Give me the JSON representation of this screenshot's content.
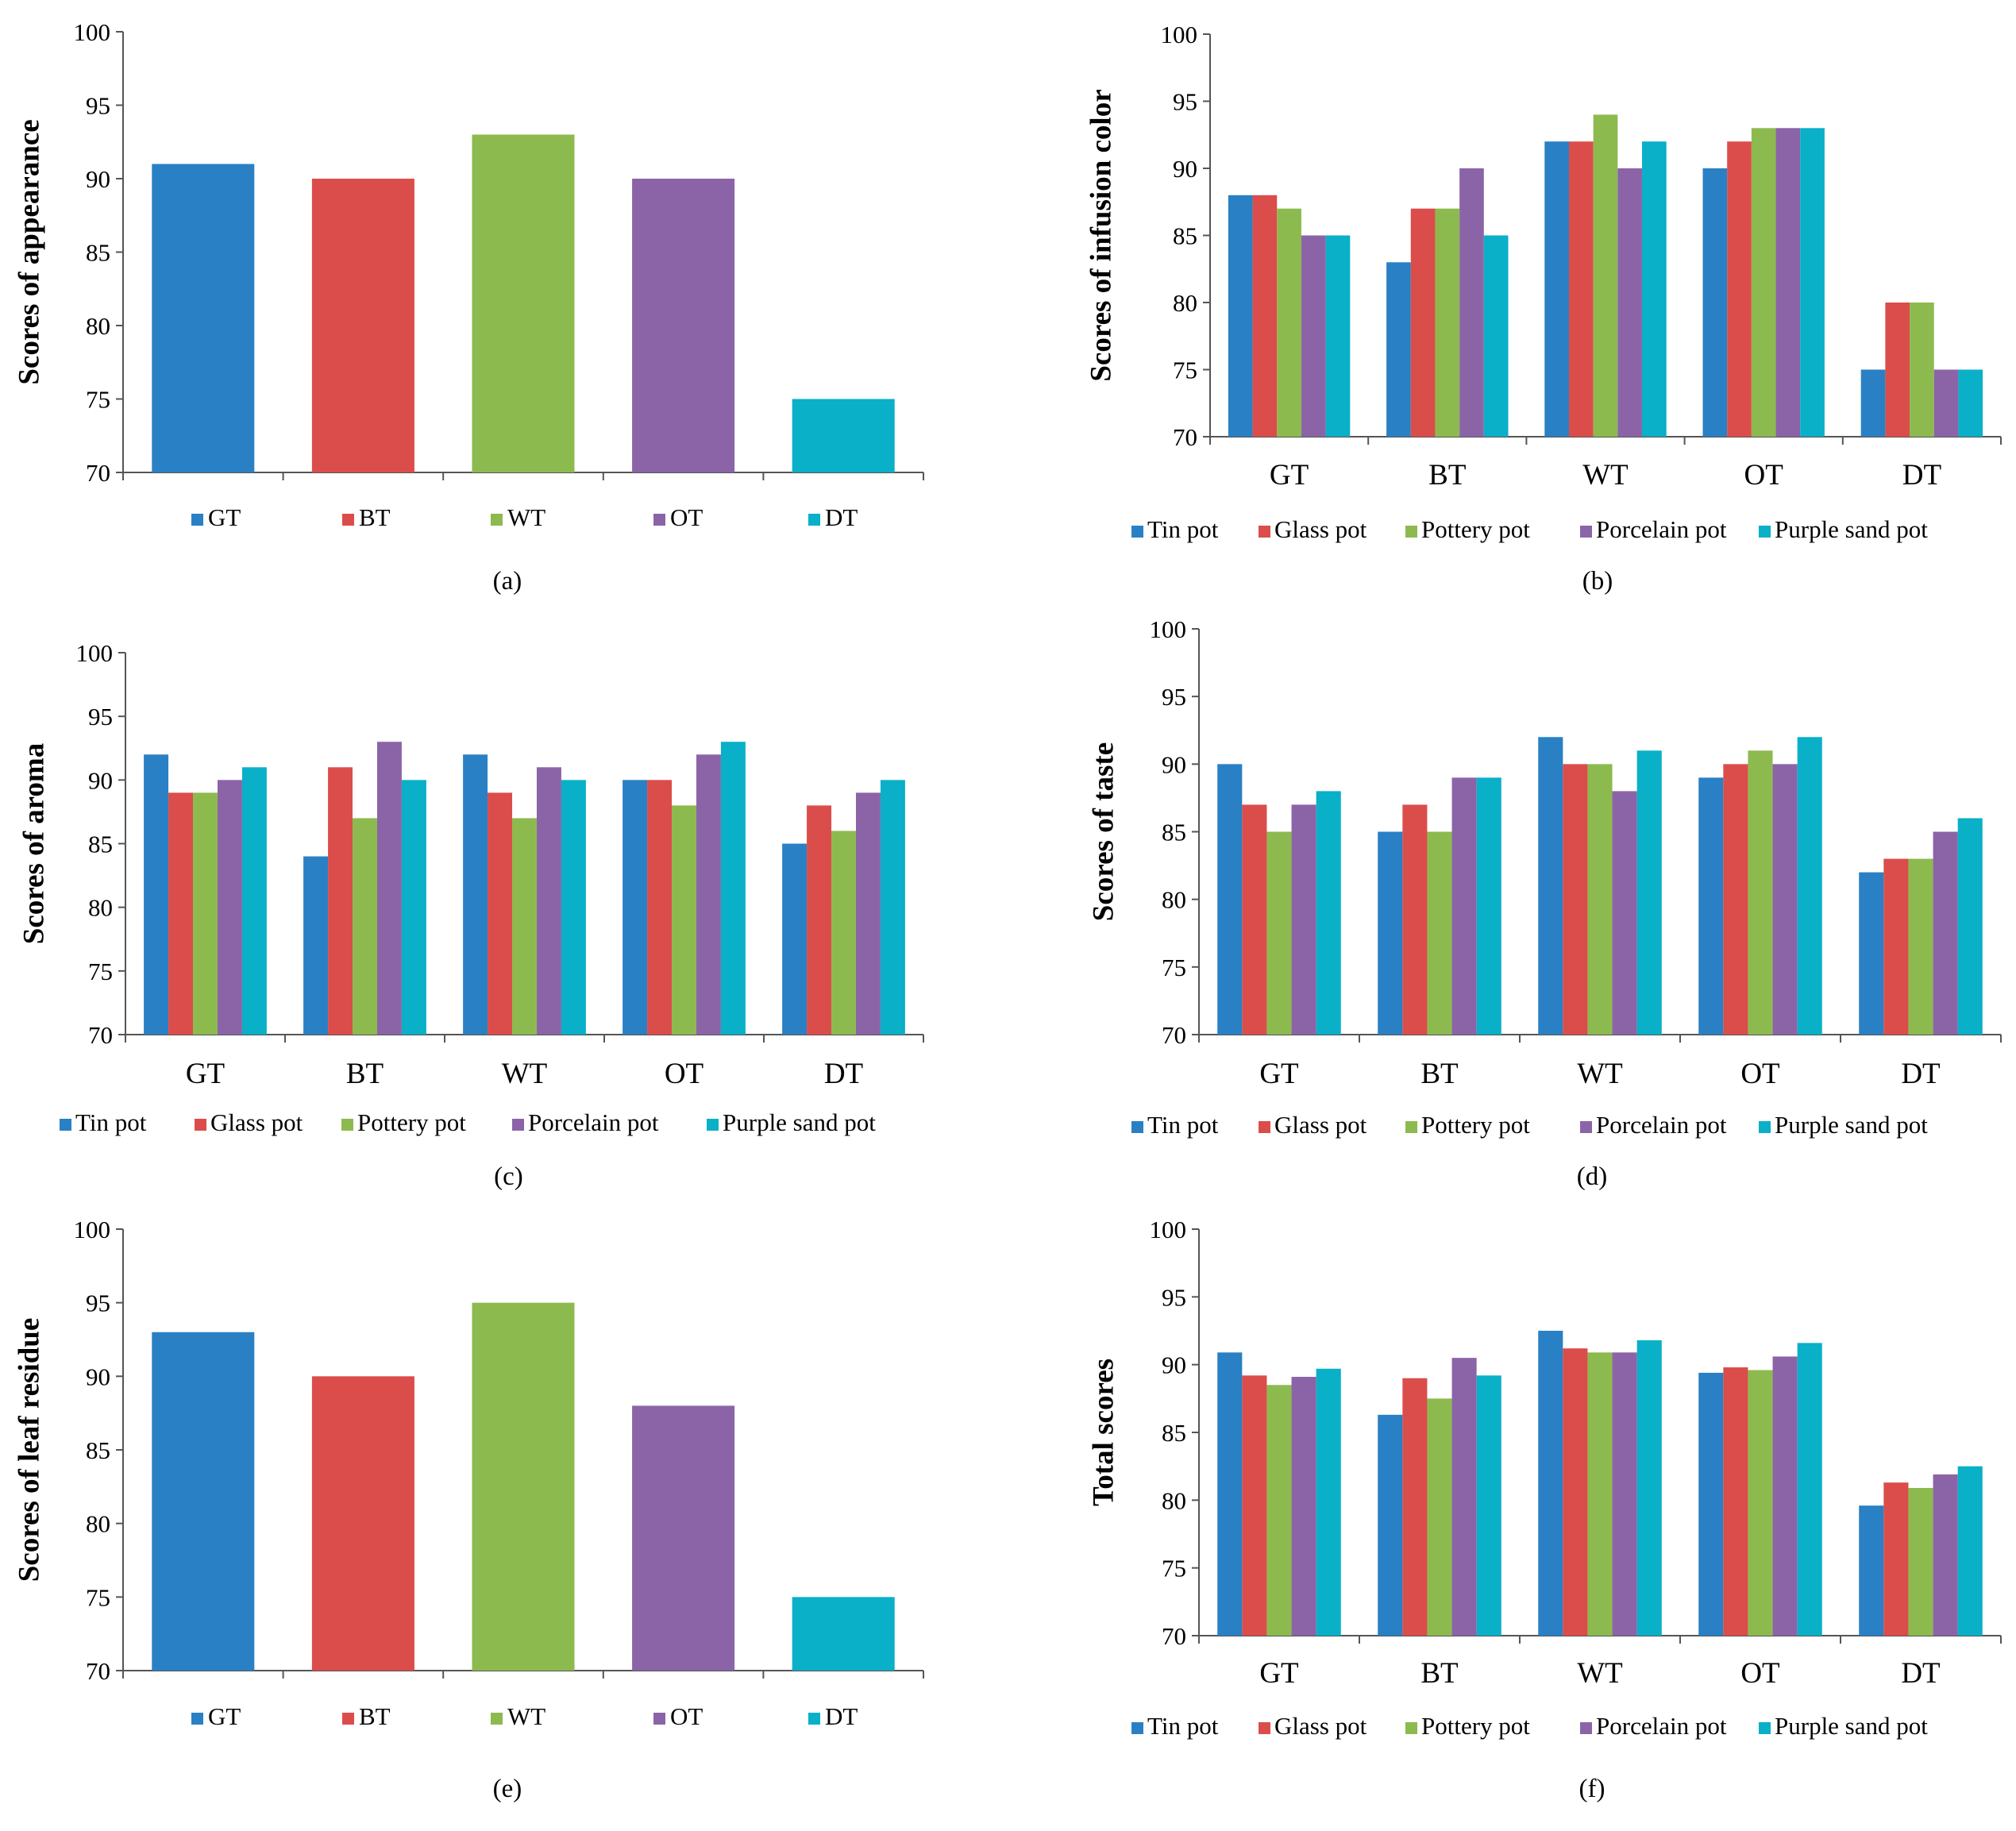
{
  "colors": {
    "GT": "#2A80C4",
    "BT": "#DB4D4B",
    "WT": "#8DBA4E",
    "OT": "#8B64A8",
    "DT": "#0AAFC8",
    "Tin pot": "#2A80C4",
    "Glass pot": "#DB4D4B",
    "Pottery pot": "#8DBA4E",
    "Porcelain pot": "#8B64A8",
    "Purple sand pot": "#0AAFC8",
    "axis": "#555555"
  },
  "chart_data": [
    {
      "id": "a",
      "type": "bar",
      "caption": "(a)",
      "ylabel": "Scores of appearance",
      "ylim": [
        70,
        100
      ],
      "yticks": [
        70,
        75,
        80,
        85,
        90,
        95,
        100
      ],
      "categories": [
        "GT",
        "BT",
        "WT",
        "OT",
        "DT"
      ],
      "values": [
        91,
        90,
        93,
        90,
        75
      ],
      "show_category_axis_labels": false,
      "legend": [
        "GT",
        "BT",
        "WT",
        "OT",
        "DT"
      ],
      "legend_position": "bottom"
    },
    {
      "id": "b",
      "type": "bar",
      "caption": "(b)",
      "ylabel": "Scores of infusion color",
      "ylim": [
        70,
        100
      ],
      "yticks": [
        70,
        75,
        80,
        85,
        90,
        95,
        100
      ],
      "categories": [
        "GT",
        "BT",
        "WT",
        "OT",
        "DT"
      ],
      "series": [
        {
          "name": "Tin pot",
          "values": [
            88,
            83,
            92,
            90,
            75
          ]
        },
        {
          "name": "Glass pot",
          "values": [
            88,
            87,
            92,
            92,
            80
          ]
        },
        {
          "name": "Pottery pot",
          "values": [
            87,
            87,
            94,
            93,
            80
          ]
        },
        {
          "name": "Porcelain pot",
          "values": [
            85,
            90,
            90,
            93,
            75
          ]
        },
        {
          "name": "Purple sand pot",
          "values": [
            85,
            85,
            92,
            93,
            75
          ]
        }
      ],
      "show_category_axis_labels": true,
      "legend_position": "bottom"
    },
    {
      "id": "c",
      "type": "bar",
      "caption": "(c)",
      "ylabel": "Scores of aroma",
      "ylim": [
        70,
        100
      ],
      "yticks": [
        70,
        75,
        80,
        85,
        90,
        95,
        100
      ],
      "categories": [
        "GT",
        "BT",
        "WT",
        "OT",
        "DT"
      ],
      "series": [
        {
          "name": "Tin pot",
          "values": [
            92,
            84,
            92,
            90,
            85
          ]
        },
        {
          "name": "Glass pot",
          "values": [
            89,
            91,
            89,
            90,
            88
          ]
        },
        {
          "name": "Pottery pot",
          "values": [
            89,
            87,
            87,
            88,
            86
          ]
        },
        {
          "name": "Porcelain pot",
          "values": [
            90,
            93,
            91,
            92,
            89
          ]
        },
        {
          "name": "Purple sand pot",
          "values": [
            91,
            90,
            90,
            93,
            90
          ]
        }
      ],
      "show_category_axis_labels": true,
      "legend_position": "bottom"
    },
    {
      "id": "d",
      "type": "bar",
      "caption": "(d)",
      "ylabel": "Scores of taste",
      "ylim": [
        70,
        100
      ],
      "yticks": [
        70,
        75,
        80,
        85,
        90,
        95,
        100
      ],
      "categories": [
        "GT",
        "BT",
        "WT",
        "OT",
        "DT"
      ],
      "series": [
        {
          "name": "Tin pot",
          "values": [
            90,
            85,
            92,
            89,
            82
          ]
        },
        {
          "name": "Glass pot",
          "values": [
            87,
            87,
            90,
            90,
            83
          ]
        },
        {
          "name": "Pottery pot",
          "values": [
            85,
            85,
            90,
            91,
            83
          ]
        },
        {
          "name": "Porcelain pot",
          "values": [
            87,
            89,
            88,
            90,
            85
          ]
        },
        {
          "name": "Purple sand pot",
          "values": [
            88,
            89,
            91,
            92,
            86
          ]
        }
      ],
      "show_category_axis_labels": true,
      "legend_position": "bottom"
    },
    {
      "id": "e",
      "type": "bar",
      "caption": "(e)",
      "ylabel": "Scores of leaf residue",
      "ylim": [
        70,
        100
      ],
      "yticks": [
        70,
        75,
        80,
        85,
        90,
        95,
        100
      ],
      "categories": [
        "GT",
        "BT",
        "WT",
        "OT",
        "DT"
      ],
      "values": [
        93,
        90,
        95,
        88,
        75
      ],
      "show_category_axis_labels": false,
      "legend": [
        "GT",
        "BT",
        "WT",
        "OT",
        "DT"
      ],
      "legend_position": "bottom"
    },
    {
      "id": "f",
      "type": "bar",
      "caption": "(f)",
      "ylabel": "Total scores",
      "ylim": [
        70,
        100
      ],
      "yticks": [
        70,
        75,
        80,
        85,
        90,
        95,
        100
      ],
      "categories": [
        "GT",
        "BT",
        "WT",
        "OT",
        "DT"
      ],
      "series": [
        {
          "name": "Tin pot",
          "values": [
            90.9,
            86.3,
            92.5,
            89.4,
            79.6
          ]
        },
        {
          "name": "Glass pot",
          "values": [
            89.2,
            89.0,
            91.2,
            89.8,
            81.3
          ]
        },
        {
          "name": "Pottery pot",
          "values": [
            88.5,
            87.5,
            90.9,
            89.6,
            80.9
          ]
        },
        {
          "name": "Porcelain pot",
          "values": [
            89.1,
            90.5,
            90.9,
            90.6,
            81.9
          ]
        },
        {
          "name": "Purple sand pot",
          "values": [
            89.7,
            89.2,
            91.8,
            91.6,
            82.5
          ]
        }
      ],
      "show_category_axis_labels": true,
      "legend_position": "bottom"
    }
  ]
}
